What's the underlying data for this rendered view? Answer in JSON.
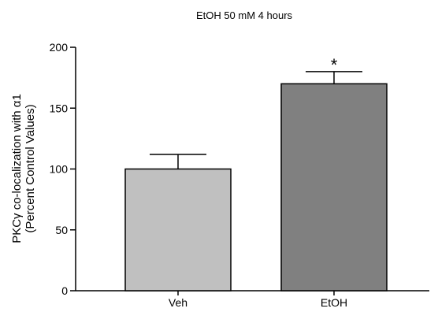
{
  "chart_data": {
    "type": "bar",
    "title": "EtOH 50 mM 4 hours",
    "ylabel_line1": "PKCγ co-localization with α1",
    "ylabel_line2": "(Percent Control Values)",
    "xlabel": "",
    "categories": [
      "Veh",
      "EtOH"
    ],
    "values": [
      100,
      170
    ],
    "errors": [
      12,
      10
    ],
    "significance": [
      "",
      "*"
    ],
    "ylim": [
      0,
      200
    ],
    "yticks": [
      0,
      50,
      100,
      150,
      200
    ],
    "bar_colors": [
      "#c0c0c0",
      "#808080"
    ],
    "grid": false,
    "legend": "none"
  }
}
